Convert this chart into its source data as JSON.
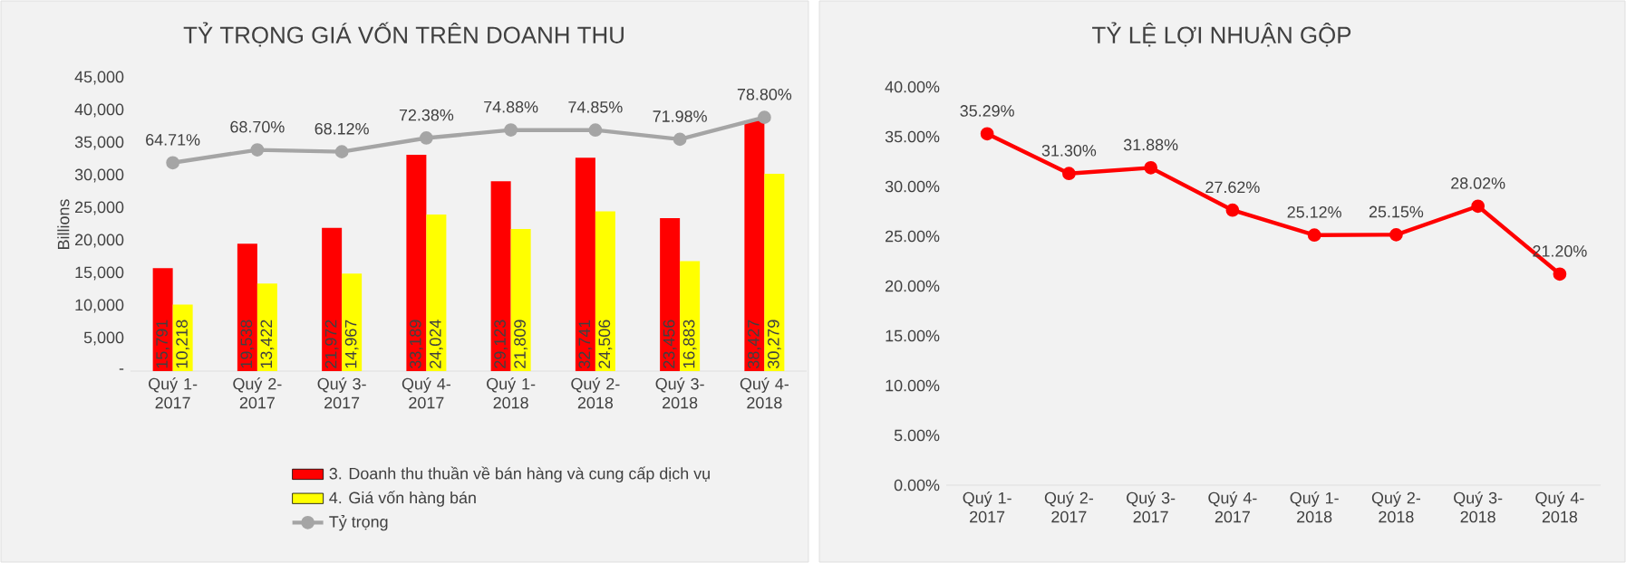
{
  "chart_data": [
    {
      "type": "bar",
      "title": "TỶ TRỌNG GIÁ VỐN TRÊN DOANH THU",
      "ylabel": "Billions",
      "categories": [
        "Quý 1-2017",
        "Quý 2-2017",
        "Quý 3-2017",
        "Quý 4-2017",
        "Quý 1-2018",
        "Quý 2-2018",
        "Quý 3-2018",
        "Quý 4-2018"
      ],
      "series": [
        {
          "name": "3. Doanh thu thuần về bán hàng và cung cấp dịch vụ",
          "color": "#ff0000",
          "values": [
            15791,
            19538,
            21972,
            33189,
            29123,
            32741,
            23456,
            38427
          ],
          "value_labels": [
            "15,791",
            "19,538",
            "21,972",
            "33,189",
            "29,123",
            "32,741",
            "23,456",
            "38,427"
          ]
        },
        {
          "name": "4. Giá vốn hàng bán",
          "color": "#ffff00",
          "values": [
            10218,
            13422,
            14967,
            24024,
            21809,
            24506,
            16883,
            30279
          ],
          "value_labels": [
            "10,218",
            "13,422",
            "14,967",
            "24,024",
            "21,809",
            "24,506",
            "16,883",
            "30,279"
          ]
        },
        {
          "name": "Tỷ trọng",
          "type": "line",
          "axis": "y2",
          "color": "#a5a5a5",
          "values": [
            64.71,
            68.7,
            68.12,
            72.38,
            74.88,
            74.85,
            71.98,
            78.8
          ],
          "value_labels": [
            "64.71%",
            "68.70%",
            "68.12%",
            "72.38%",
            "74.88%",
            "74.85%",
            "71.98%",
            "78.80%"
          ]
        }
      ],
      "ylim": [
        0,
        45000
      ],
      "yticks": [
        {
          "value": 0,
          "label": "-"
        },
        {
          "value": 5000,
          "label": "5,000"
        },
        {
          "value": 10000,
          "label": "10,000"
        },
        {
          "value": 15000,
          "label": "15,000"
        },
        {
          "value": 20000,
          "label": "20,000"
        },
        {
          "value": 25000,
          "label": "25,000"
        },
        {
          "value": 30000,
          "label": "30,000"
        },
        {
          "value": 35000,
          "label": "35,000"
        },
        {
          "value": 40000,
          "label": "40,000"
        },
        {
          "value": 45000,
          "label": "45,000"
        }
      ],
      "marker": "circle",
      "legend": "bottom",
      "grid": false
    },
    {
      "type": "line",
      "title": "TỶ LỆ  LỢI NHUẬN GỘP",
      "categories": [
        "Quý 1-2017",
        "Quý 2-2017",
        "Quý 3-2017",
        "Quý 4-2017",
        "Quý 1-2018",
        "Quý 2-2018",
        "Quý 3-2018",
        "Quý 4-2018"
      ],
      "values": [
        35.29,
        31.3,
        31.88,
        27.62,
        25.12,
        25.15,
        28.02,
        21.2
      ],
      "value_labels": [
        "35.29%",
        "31.30%",
        "31.88%",
        "27.62%",
        "25.12%",
        "25.15%",
        "28.02%",
        "21.20%"
      ],
      "color": "#ff0000",
      "marker": "circle",
      "ylim": [
        0,
        40
      ],
      "yticks": [
        {
          "value": 0,
          "label": "0.00%"
        },
        {
          "value": 5,
          "label": "5.00%"
        },
        {
          "value": 10,
          "label": "10.00%"
        },
        {
          "value": 15,
          "label": "15.00%"
        },
        {
          "value": 20,
          "label": "20.00%"
        },
        {
          "value": 25,
          "label": "25.00%"
        },
        {
          "value": 30,
          "label": "30.00%"
        },
        {
          "value": 35,
          "label": "35.00%"
        },
        {
          "value": 40,
          "label": "40.00%"
        }
      ],
      "legend": false,
      "grid": false
    }
  ]
}
